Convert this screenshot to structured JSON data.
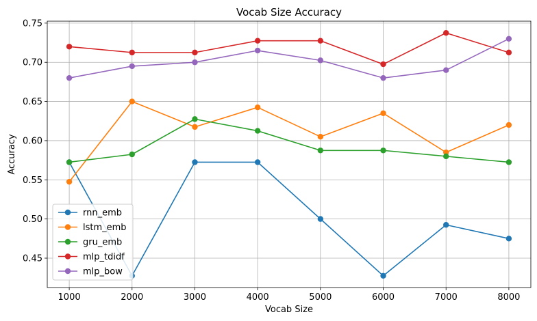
{
  "chart_data": {
    "type": "line",
    "title": "Vocab Size Accuracy",
    "xlabel": "Vocab Size",
    "ylabel": "Accuracy",
    "x": [
      1000,
      2000,
      3000,
      4000,
      5000,
      6000,
      7000,
      8000
    ],
    "x_ticks": [
      "1000",
      "2000",
      "3000",
      "4000",
      "5000",
      "6000",
      "7000",
      "8000"
    ],
    "y_ticks": [
      "0.45",
      "0.50",
      "0.55",
      "0.60",
      "0.65",
      "0.70",
      "0.75"
    ],
    "xlim": [
      650,
      8350
    ],
    "ylim": [
      0.4125,
      0.7525
    ],
    "grid": true,
    "legend_position": "lower-left",
    "series": [
      {
        "name": "rnn_emb",
        "color": "#1f77b4",
        "values": [
          0.5725,
          0.4275,
          0.5725,
          0.5725,
          0.5,
          0.4275,
          0.4925,
          0.475
        ]
      },
      {
        "name": "lstm_emb",
        "color": "#ff7f0e",
        "values": [
          0.5475,
          0.65,
          0.6175,
          0.6425,
          0.605,
          0.635,
          0.585,
          0.62
        ]
      },
      {
        "name": "gru_emb",
        "color": "#2ca02c",
        "values": [
          0.5725,
          0.5825,
          0.6275,
          0.6125,
          0.5875,
          0.5875,
          0.58,
          0.5725
        ]
      },
      {
        "name": "mlp_tdidf",
        "color": "#d62728",
        "values": [
          0.72,
          0.7125,
          0.7125,
          0.7275,
          0.7275,
          0.6975,
          0.7375,
          0.7125
        ]
      },
      {
        "name": "mlp_bow",
        "color": "#9467bd",
        "values": [
          0.68,
          0.695,
          0.7,
          0.715,
          0.7025,
          0.68,
          0.69,
          0.73
        ]
      }
    ]
  }
}
